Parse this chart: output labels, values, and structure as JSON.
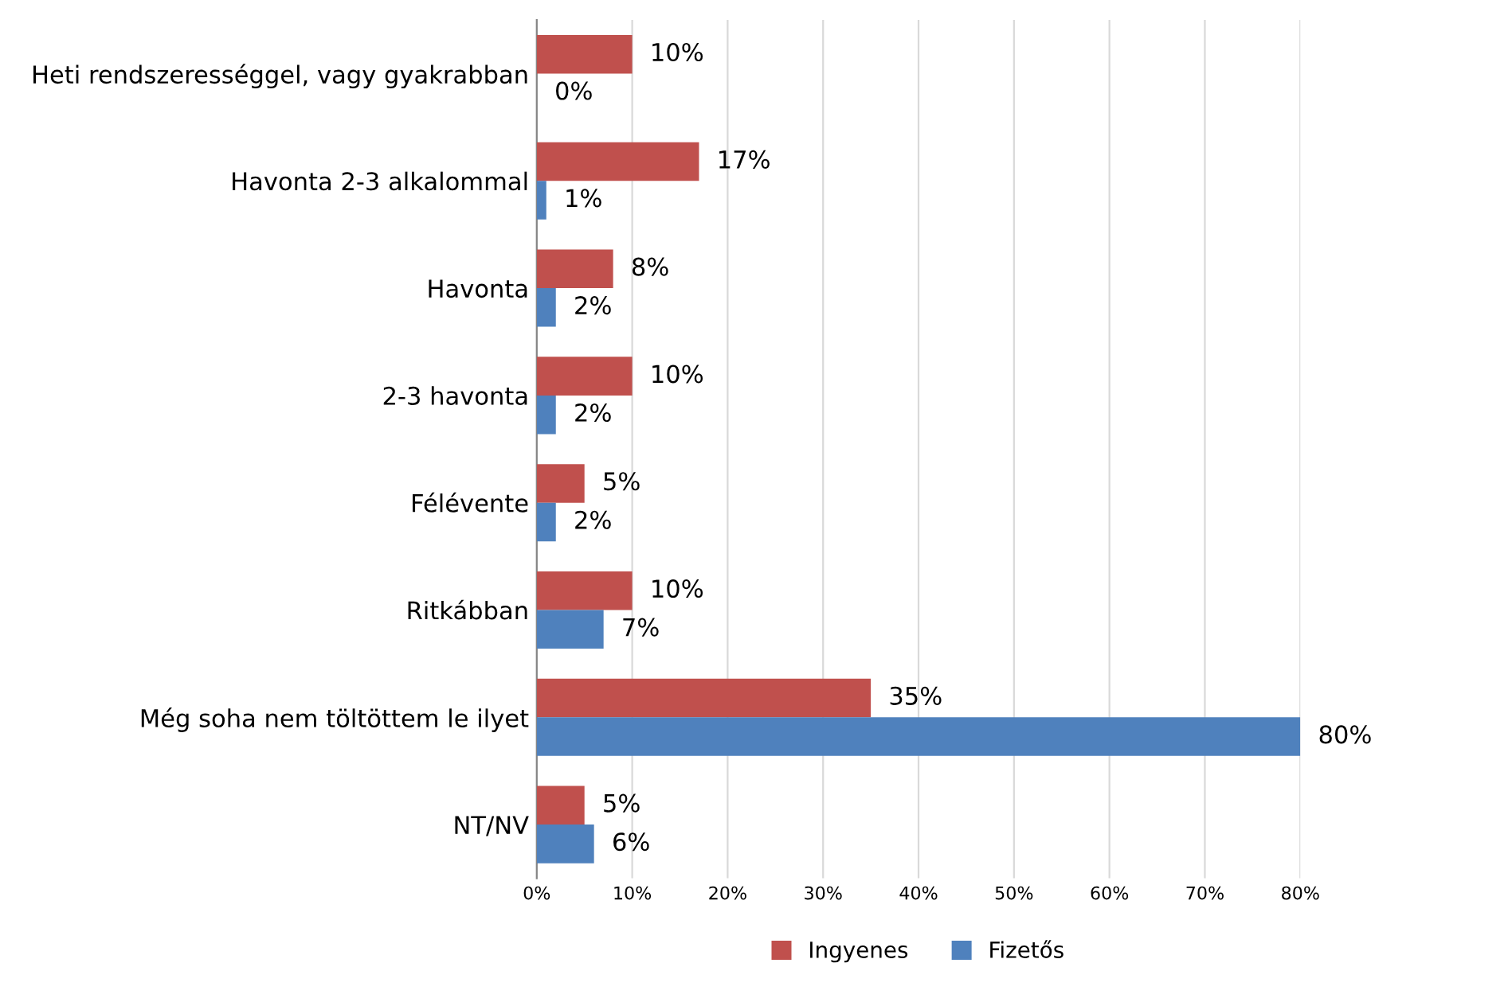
{
  "chart_data": {
    "type": "bar",
    "orientation": "horizontal",
    "categories": [
      "Heti rendszerességgel, vagy gyakrabban",
      "Havonta 2-3 alkalommal",
      "Havonta",
      "2-3 havonta",
      "Félévente",
      "Ritkábban",
      "Még soha nem töltöttem le ilyet",
      "NT/NV"
    ],
    "series": [
      {
        "name": "Ingyenes",
        "color": "#c0504d",
        "values": [
          10,
          17,
          8,
          10,
          5,
          10,
          35,
          5
        ],
        "value_labels": [
          "10%",
          "17%",
          "8%",
          "10%",
          "5%",
          "10%",
          "35%",
          "5%"
        ]
      },
      {
        "name": "Fizetős",
        "color": "#4f81bd",
        "values": [
          0,
          1,
          2,
          2,
          2,
          7,
          80,
          6
        ],
        "value_labels": [
          "0%",
          "1%",
          "2%",
          "2%",
          "2%",
          "7%",
          "80%",
          "6%"
        ]
      }
    ],
    "xlim": [
      0,
      80
    ],
    "xticks": [
      {
        "value": 0,
        "label": "0%"
      },
      {
        "value": 10,
        "label": "10%"
      },
      {
        "value": 20,
        "label": "20%"
      },
      {
        "value": 30,
        "label": "30%"
      },
      {
        "value": 40,
        "label": "40%"
      },
      {
        "value": 50,
        "label": "50%"
      },
      {
        "value": 60,
        "label": "60%"
      },
      {
        "value": 70,
        "label": "70%"
      },
      {
        "value": 80,
        "label": "80%"
      }
    ],
    "grid": "x",
    "legend": "bottom"
  }
}
